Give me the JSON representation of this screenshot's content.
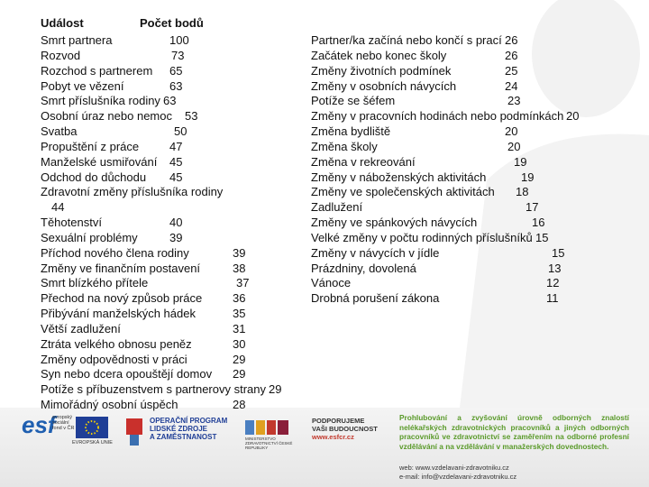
{
  "header": {
    "event": "Událost",
    "points": "Počet bodů"
  },
  "left": [
    {
      "event": "Smrt partnera",
      "points": "100"
    },
    {
      "event": "Rozvod",
      "points": "73"
    },
    {
      "event": "Rozchod s partnerem",
      "points": "65"
    },
    {
      "event": "Pobyt ve vězení",
      "points": "63"
    },
    {
      "event": "Smrt příslušníka rodiny",
      "points": "63"
    },
    {
      "event": "Osobní úraz nebo nemoc",
      "points": "53"
    },
    {
      "event": "Svatba",
      "points": "50"
    },
    {
      "event": "Propuštění z práce",
      "points": "47"
    },
    {
      "event": "Manželské usmiřování",
      "points": "45"
    },
    {
      "event": "Odchod do důchodu",
      "points": "45"
    },
    {
      "event": "Zdravotní změny příslušníka rodiny",
      "points": "44"
    },
    {
      "event": "Těhotenství",
      "points": "40"
    },
    {
      "event": "Sexuální problémy",
      "points": "39"
    },
    {
      "event": "Příchod nového člena rodiny",
      "points": "39"
    },
    {
      "event": "Změny ve finančním postavení",
      "points": "38"
    },
    {
      "event": "Smrt blízkého přítele",
      "points": "37"
    },
    {
      "event": "Přechod na nový způsob práce",
      "points": "36"
    },
    {
      "event": "Přibývání manželských hádek",
      "points": "35"
    },
    {
      "event": "Větší zadlužení",
      "points": "31"
    },
    {
      "event": "Ztráta velkého obnosu peněz",
      "points": "30"
    },
    {
      "event": "Změny odpovědnosti v práci",
      "points": "29"
    },
    {
      "event": "Syn nebo dcera opouštějí domov",
      "points": "29"
    },
    {
      "event": "Potíže s příbuzenstvem s partnerovy strany",
      "points": "29"
    },
    {
      "event": "Mimořádný osobní úspěch",
      "points": "28"
    }
  ],
  "right": [
    {
      "event": "Partner/ka začíná nebo končí s prací",
      "points": "26"
    },
    {
      "event": "Začátek nebo konec školy",
      "points": "26"
    },
    {
      "event": "Změny životních podmínek",
      "points": "25"
    },
    {
      "event": "Změny v osobních návycích",
      "points": "24"
    },
    {
      "event": "Potíže se šéfem",
      "points": "23"
    },
    {
      "event": "Změny v pracovních hodinách nebo podmínkách",
      "points": "20"
    },
    {
      "event": "Změna bydliště",
      "points": "20"
    },
    {
      "event": "Změna školy",
      "points": "20"
    },
    {
      "event": "Změna v rekreování",
      "points": "19"
    },
    {
      "event": "Změny v náboženských aktivitách",
      "points": "19"
    },
    {
      "event": "Změny ve společenských aktivitách",
      "points": "18"
    },
    {
      "event": "Zadlužení",
      "points": "17"
    },
    {
      "event": "Změny ve spánkových návycích",
      "points": "16"
    },
    {
      "event": "Velké změny v počtu rodinných příslušníků",
      "points": "15"
    },
    {
      "event": "Změny v návycích v jídle",
      "points": "15"
    },
    {
      "event": "Prázdniny, dovolená",
      "points": "13"
    },
    {
      "event": "Vánoce",
      "points": "12"
    },
    {
      "event": "Drobná porušení zákona",
      "points": "11"
    }
  ],
  "footer": {
    "esf": "esf",
    "esf_sub": "evropský sociální fond v ČR",
    "eu": "EVROPSKÁ UNIE",
    "op": [
      "OPERAČNÍ PROGRAM",
      "LIDSKÉ ZDROJE",
      "A ZAMĚSTNANOST"
    ],
    "ministry": "MINISTERSTVO ZDRAVOTNICTVÍ ČESKÉ REPUBLIKY",
    "support": [
      "PODPORUJEME",
      "VAŠI BUDOUCNOST",
      "www.esfcr.cz"
    ],
    "project": "Prohlubování a zvyšování úrovně odborných znalostí nelékařských zdravotnických pracovníků a jiných odborných pracovníků ve zdravotnictví se zaměřením na odborné profesní vzdělávání a na vzdělávání v manažerských dovednostech.",
    "web": "web: www.vzdelavani-zdravotniku.cz",
    "email": "e-mail: info@vzdelavani-zdravotniku.cz"
  }
}
